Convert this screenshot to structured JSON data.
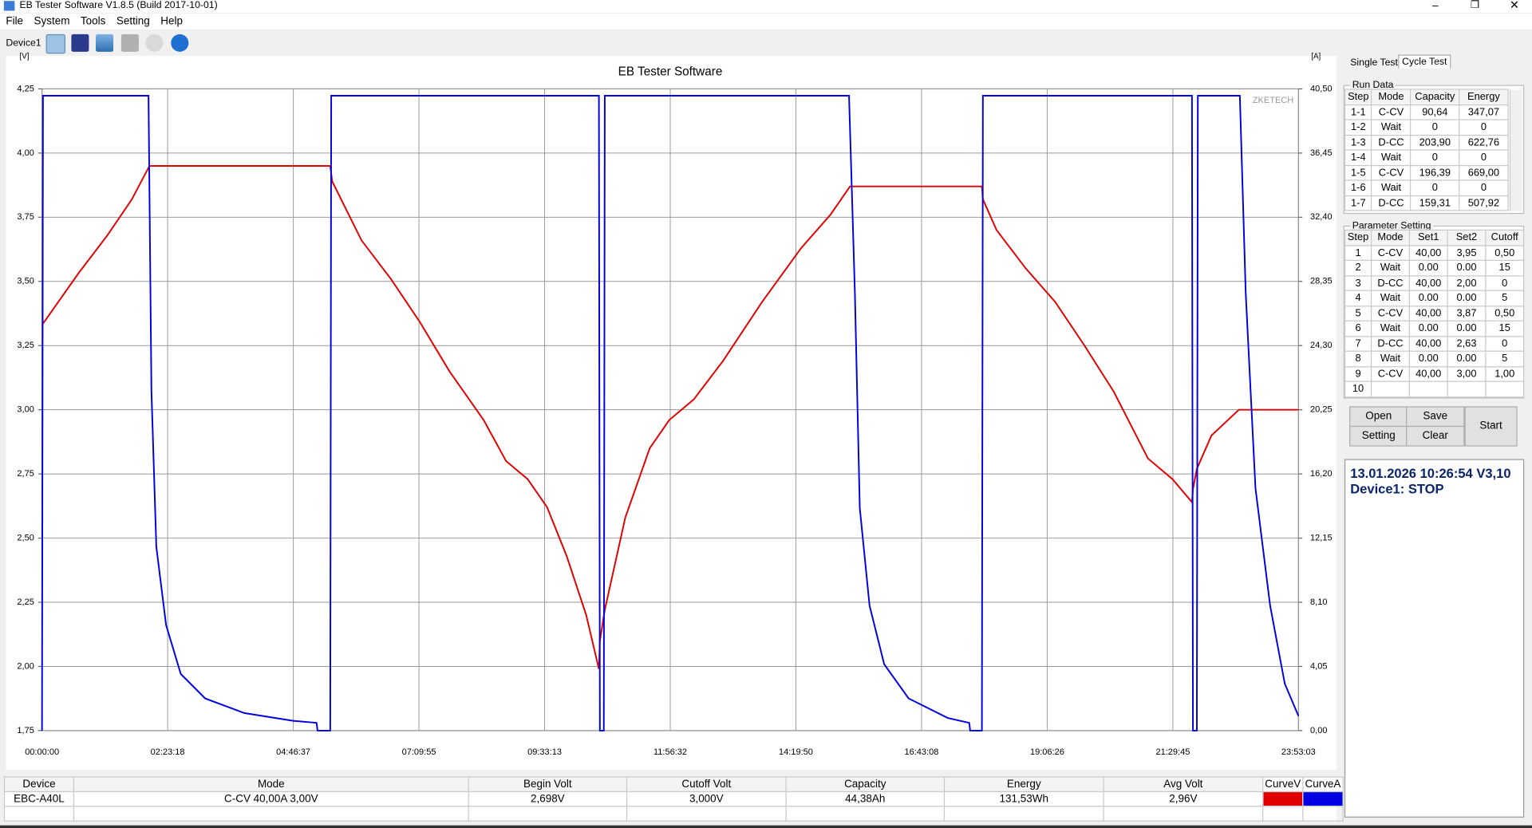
{
  "window": {
    "title": "EB Tester Software V1.8.5 (Build 2017-10-01)"
  },
  "menu": [
    "File",
    "System",
    "Tools",
    "Setting",
    "Help"
  ],
  "toolbar": {
    "device": "Device1"
  },
  "chart_data": {
    "type": "line",
    "title": "EB Tester Software",
    "y_label": "[V]",
    "y2_label": "[A]",
    "watermark": "ZKETECH",
    "grid": true,
    "xlim": [
      0,
      85983
    ],
    "xticks": [
      {
        "value": 0,
        "label": "00:00:00"
      },
      {
        "value": 8598,
        "label": "02:23:18"
      },
      {
        "value": 17197,
        "label": "04:46:37"
      },
      {
        "value": 25795,
        "label": "07:09:55"
      },
      {
        "value": 34393,
        "label": "09:33:13"
      },
      {
        "value": 42992,
        "label": "11:56:32"
      },
      {
        "value": 51590,
        "label": "14:19:50"
      },
      {
        "value": 60188,
        "label": "16:43:08"
      },
      {
        "value": 68786,
        "label": "19:06:26"
      },
      {
        "value": 77385,
        "label": "21:29:45"
      },
      {
        "value": 85983,
        "label": "23:53:03"
      }
    ],
    "ylim": [
      1.75,
      4.25
    ],
    "yticks": [
      {
        "value": 1.75,
        "label": "1,75"
      },
      {
        "value": 2.0,
        "label": "2,00"
      },
      {
        "value": 2.25,
        "label": "2,25"
      },
      {
        "value": 2.5,
        "label": "2,50"
      },
      {
        "value": 2.75,
        "label": "2,75"
      },
      {
        "value": 3.0,
        "label": "3,00"
      },
      {
        "value": 3.25,
        "label": "3,25"
      },
      {
        "value": 3.5,
        "label": "3,50"
      },
      {
        "value": 3.75,
        "label": "3,75"
      },
      {
        "value": 4.0,
        "label": "4,00"
      },
      {
        "value": 4.25,
        "label": "4,25"
      }
    ],
    "y2lim": [
      0,
      40.5
    ],
    "y2ticks": [
      {
        "value": 0,
        "label": "0,00"
      },
      {
        "value": 4.05,
        "label": "4,05"
      },
      {
        "value": 8.1,
        "label": "8,10"
      },
      {
        "value": 12.15,
        "label": "12,15"
      },
      {
        "value": 16.2,
        "label": "16,20"
      },
      {
        "value": 20.25,
        "label": "20,25"
      },
      {
        "value": 24.3,
        "label": "24,30"
      },
      {
        "value": 28.35,
        "label": "28,35"
      },
      {
        "value": 32.4,
        "label": "32,40"
      },
      {
        "value": 36.45,
        "label": "36,45"
      },
      {
        "value": 40.5,
        "label": "40,50"
      }
    ],
    "series": [
      {
        "name": "CurveV",
        "color": "#e00000",
        "axis": "y",
        "x": [
          0,
          2474,
          4480,
          6151,
          7355,
          19724,
          19857,
          21863,
          23869,
          25875,
          27881,
          30221,
          31759,
          33229,
          34567,
          35904,
          37241,
          38110,
          38177,
          38511,
          39915,
          41587,
          42924,
          44596,
          46601,
          49276,
          51950,
          53956,
          55293,
          64319,
          64386,
          65322,
          67328,
          69334,
          71340,
          73345,
          75685,
          77357,
          78694,
          78761,
          79028,
          80031,
          81904,
          85983
        ],
        "values": [
          3.33,
          3.53,
          3.68,
          3.82,
          3.95,
          3.95,
          3.89,
          3.66,
          3.51,
          3.34,
          3.15,
          2.96,
          2.8,
          2.73,
          2.62,
          2.43,
          2.2,
          1.99,
          2.1,
          2.22,
          2.58,
          2.85,
          2.96,
          3.04,
          3.19,
          3.42,
          3.63,
          3.76,
          3.87,
          3.87,
          3.82,
          3.7,
          3.55,
          3.42,
          3.25,
          3.07,
          2.81,
          2.73,
          2.64,
          2.69,
          2.77,
          2.9,
          3.0,
          3.0
        ]
      },
      {
        "name": "CurveA",
        "color": "#0000e0",
        "axis": "y2",
        "x": [
          0,
          67,
          7288,
          7488,
          7823,
          8491,
          9494,
          11166,
          13840,
          17183,
          18788,
          18855,
          19724,
          19791,
          38110,
          38177,
          38445,
          38511,
          55226,
          55627,
          55962,
          56630,
          57633,
          59305,
          61979,
          63450,
          63517,
          64319,
          64386,
          78694,
          78761,
          79028,
          79095,
          81970,
          82372,
          83040,
          84043,
          85046,
          85983
        ],
        "values": [
          0,
          40.07,
          40.07,
          21.45,
          11.6,
          6.66,
          3.58,
          2.03,
          1.11,
          0.62,
          0.49,
          0,
          0,
          40.07,
          40.07,
          0,
          0,
          40.07,
          40.07,
          27.62,
          14.05,
          7.89,
          4.19,
          2.03,
          0.8,
          0.49,
          0,
          0,
          40.07,
          40.07,
          0,
          0,
          40.07,
          40.07,
          27.62,
          15.29,
          7.89,
          2.96,
          0.92
        ]
      }
    ]
  },
  "side_panel": {
    "tabs": [
      "Single Test",
      "Cycle Test"
    ],
    "run_data": {
      "title": "Run Data",
      "columns": [
        "Step",
        "Mode",
        "Capacity",
        "Energy"
      ],
      "rows": [
        [
          "1-1",
          "C-CV",
          "90,64",
          "347,07"
        ],
        [
          "1-2",
          "Wait",
          "0",
          "0"
        ],
        [
          "1-3",
          "D-CC",
          "203,90",
          "622,76"
        ],
        [
          "1-4",
          "Wait",
          "0",
          "0"
        ],
        [
          "1-5",
          "C-CV",
          "196,39",
          "669,00"
        ],
        [
          "1-6",
          "Wait",
          "0",
          "0"
        ],
        [
          "1-7",
          "D-CC",
          "159,31",
          "507,92"
        ]
      ]
    },
    "parameter_setting": {
      "title": "Parameter Setting",
      "columns": [
        "Step",
        "Mode",
        "Set1",
        "Set2",
        "Cutoff"
      ],
      "rows": [
        [
          "1",
          "C-CV",
          "40,00",
          "3,95",
          "0,50"
        ],
        [
          "2",
          "Wait",
          "0.00",
          "0.00",
          "15"
        ],
        [
          "3",
          "D-CC",
          "40,00",
          "2,00",
          "0"
        ],
        [
          "4",
          "Wait",
          "0.00",
          "0.00",
          "5"
        ],
        [
          "5",
          "C-CV",
          "40,00",
          "3,87",
          "0,50"
        ],
        [
          "6",
          "Wait",
          "0.00",
          "0.00",
          "15"
        ],
        [
          "7",
          "D-CC",
          "40,00",
          "2,63",
          "0"
        ],
        [
          "8",
          "Wait",
          "0.00",
          "0.00",
          "5"
        ],
        [
          "9",
          "C-CV",
          "40,00",
          "3,00",
          "1,00"
        ],
        [
          "10"
        ]
      ]
    },
    "buttons": [
      "Open",
      "Save",
      "Setting",
      "Clear",
      "Start"
    ],
    "status": {
      "datetime": "13.01.2026 10:26:54  V3,10",
      "device_state": "Device1: STOP"
    }
  },
  "summary_table": {
    "columns": [
      "Device",
      "Mode",
      "Begin Volt",
      "Cutoff Volt",
      "Capacity",
      "Energy",
      "Avg Volt"
    ],
    "rows": [
      [
        "EBC-A40L",
        "C-CV  40,00A  3,00V",
        "2,698V",
        "3,000V",
        "44,38Ah",
        "131,53Wh",
        "2,96V"
      ]
    ]
  }
}
